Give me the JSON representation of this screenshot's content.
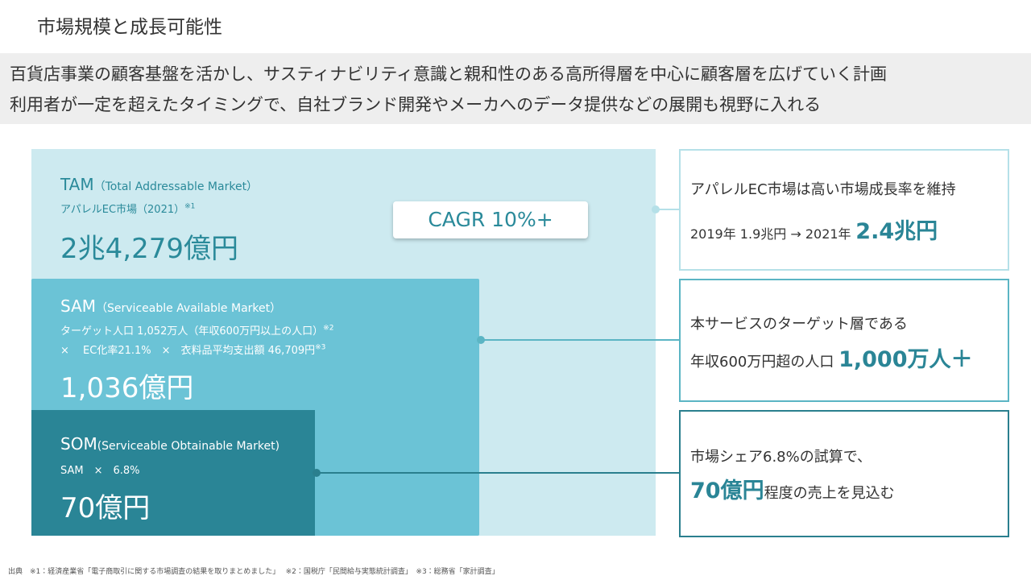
{
  "header": {
    "title": "市場規模と成長可能性"
  },
  "summary": {
    "lines": [
      "百貨店事業の顧客基盤を活かし、サスティナビリティ意識と親和性のある高所得層を中心に顧客層を広げていく計画",
      "利用者が一定を超えたタイミングで、自社ブランド開発やメーカへのデータ提供などの展開も視野に入れる"
    ]
  },
  "tam": {
    "label": "TAM",
    "sub": "（Total Addressable Market）",
    "desc": "アパレルEC市場（2021）",
    "note": "※1",
    "value": "2兆4,279億円"
  },
  "cagr": "CAGR 10%+",
  "sam": {
    "label": "SAM",
    "sub": "（Serviceable Available Market）",
    "line1": "ターゲット人口 1,052万人（年収600万円以上の人口）",
    "note1": "※2",
    "line2": "×　 EC化率21.1%　×　衣料品平均支出額 46,709円",
    "note2": "※3",
    "value": "1,036億円"
  },
  "som": {
    "label": "SOM",
    "sub": "(Serviceable Obtainable Market)",
    "desc": "SAM　×　6.8%",
    "value": "70億円"
  },
  "callouts": [
    {
      "line1": "アパレルEC市場は高い市場成長率を維持",
      "line2": "2019年  1.9兆円 → 2021年",
      "emphasis": "2.4兆円"
    },
    {
      "line1": "本サービスのターゲット層である",
      "line2": "年収600万円超の人口",
      "emphasis": "1,000万人＋"
    },
    {
      "line1": "市場シェア6.8%の試算で、",
      "emphasis": "70億円",
      "line2": "程度の売上を見込む"
    }
  ],
  "footnote": "出典　※1：経済産業省「電子商取引に関する市場調査の結果を取りまとめました」　 ※2：国税庁「民間給与実態統計調査」　※3：総務省「家計調査」"
}
